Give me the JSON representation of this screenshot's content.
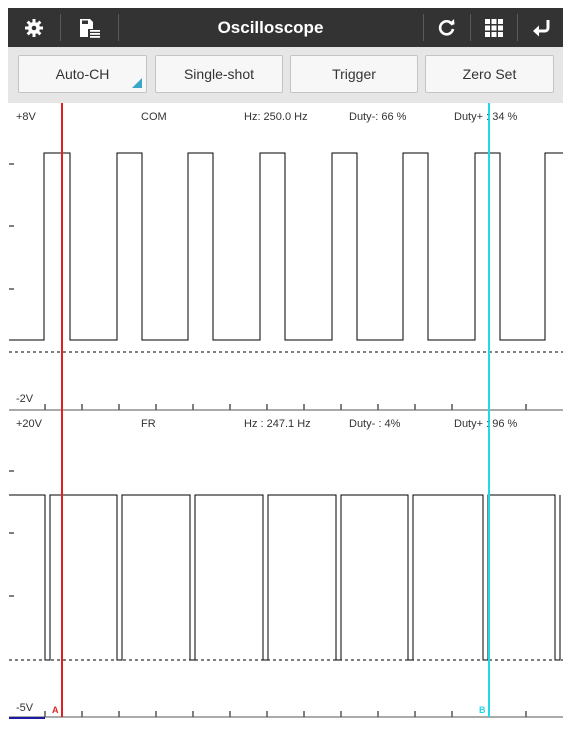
{
  "app": {
    "title": "Oscilloscope",
    "icons": {
      "settings": "gear-icon",
      "save": "save-list-icon",
      "refresh": "refresh-icon",
      "grid": "grid-icon",
      "back": "return-icon"
    }
  },
  "toolbar": {
    "buttons": [
      {
        "label": "Auto-CH"
      },
      {
        "label": "Single-shot"
      },
      {
        "label": "Trigger"
      },
      {
        "label": "Zero Set"
      }
    ]
  },
  "channels": [
    {
      "name": "COM",
      "top_label": "+8V",
      "bottom_label": "-2V",
      "hz": "Hz: 250.0 Hz",
      "duty_minus": "Duty-: 66 %",
      "duty_plus": "Duty+ : 34 %"
    },
    {
      "name": "FR",
      "top_label": "+20V",
      "bottom_label": "-5V",
      "hz": "Hz : 247.1 Hz",
      "duty_minus": "Duty- : 4%",
      "duty_plus": "Duty+ : 96 %"
    }
  ],
  "cursors": {
    "a_label": "A",
    "b_label": "B",
    "a_color": "#e02020",
    "b_color": "#22d8e8"
  },
  "colors": {
    "header_bg": "#333333",
    "toolbar_bg": "#e6e6e6",
    "accent": "#3aa6c8",
    "trace": "#000000"
  }
}
